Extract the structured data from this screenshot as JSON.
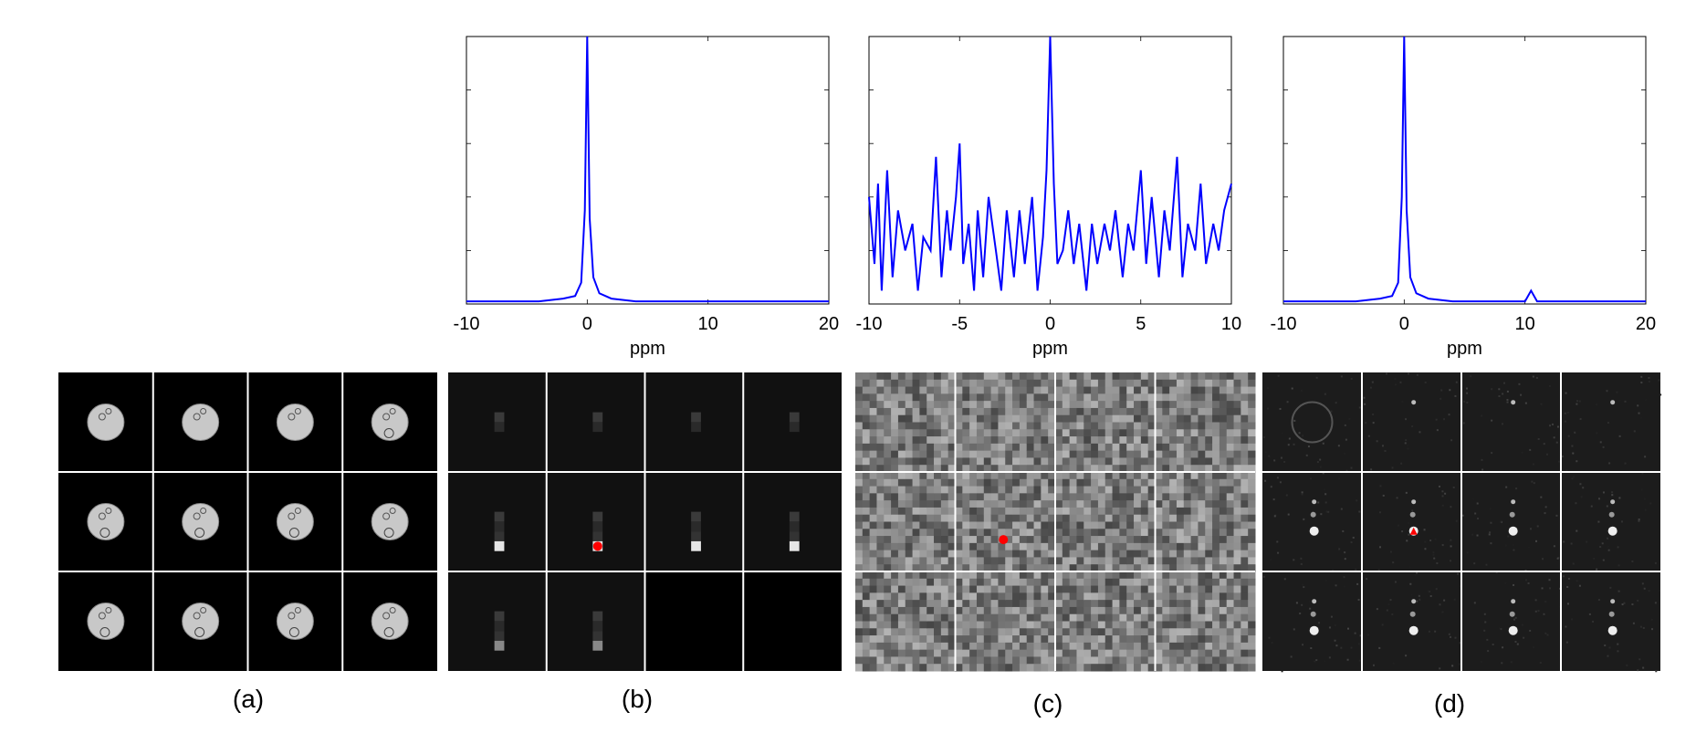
{
  "panel_labels": [
    "(a)",
    "(b)",
    "(c)",
    "(d)"
  ],
  "colors": {
    "spectrum_line": "#0000ff",
    "marker": "#ff0000",
    "grid_line": "#ffffff",
    "axis": "#000000"
  },
  "chart_data": [
    {
      "type": "line",
      "xlabel": "ppm",
      "xlim": [
        -10,
        20
      ],
      "xticks": [
        -10,
        0,
        10,
        20
      ],
      "ylim": [
        0,
        1
      ],
      "yticks": [
        0.2,
        0.4,
        0.6,
        0.8
      ],
      "series": [
        {
          "x": [
            -10,
            -8,
            -6,
            -4,
            -2,
            -1,
            -0.5,
            -0.2,
            0,
            0.2,
            0.5,
            1,
            2,
            4,
            6,
            8,
            10,
            12,
            14,
            16,
            18,
            20
          ],
          "y": [
            0.01,
            0.01,
            0.01,
            0.01,
            0.02,
            0.03,
            0.08,
            0.35,
            1.0,
            0.32,
            0.1,
            0.04,
            0.02,
            0.01,
            0.01,
            0.01,
            0.01,
            0.01,
            0.01,
            0.01,
            0.01,
            0.01
          ]
        }
      ]
    },
    {
      "type": "line",
      "xlabel": "ppm",
      "xlim": [
        -10,
        10
      ],
      "xticks": [
        -10,
        -5,
        0,
        5,
        10
      ],
      "ylim": [
        0,
        1
      ],
      "yticks": [
        0.2,
        0.4,
        0.6,
        0.8
      ],
      "series": [
        {
          "x": [
            -10,
            -9.7,
            -9.5,
            -9.3,
            -9,
            -8.7,
            -8.4,
            -8,
            -7.6,
            -7.3,
            -7,
            -6.6,
            -6.3,
            -6,
            -5.7,
            -5.5,
            -5.2,
            -5,
            -4.8,
            -4.5,
            -4.2,
            -4,
            -3.7,
            -3.4,
            -3,
            -2.7,
            -2.4,
            -2,
            -1.7,
            -1.4,
            -1,
            -0.7,
            -0.4,
            -0.2,
            0,
            0.2,
            0.4,
            0.7,
            1,
            1.3,
            1.6,
            2,
            2.3,
            2.6,
            3,
            3.3,
            3.6,
            4,
            4.3,
            4.6,
            5,
            5.3,
            5.6,
            6,
            6.3,
            6.6,
            7,
            7.3,
            7.6,
            8,
            8.3,
            8.6,
            9,
            9.3,
            9.6,
            10
          ],
          "y": [
            0.4,
            0.15,
            0.45,
            0.05,
            0.5,
            0.1,
            0.35,
            0.2,
            0.3,
            0.05,
            0.25,
            0.2,
            0.55,
            0.1,
            0.35,
            0.2,
            0.4,
            0.6,
            0.15,
            0.3,
            0.05,
            0.35,
            0.1,
            0.4,
            0.2,
            0.05,
            0.35,
            0.1,
            0.35,
            0.15,
            0.4,
            0.05,
            0.25,
            0.5,
            1.0,
            0.45,
            0.15,
            0.2,
            0.35,
            0.15,
            0.3,
            0.05,
            0.3,
            0.15,
            0.3,
            0.2,
            0.35,
            0.1,
            0.3,
            0.2,
            0.5,
            0.15,
            0.4,
            0.1,
            0.35,
            0.2,
            0.55,
            0.1,
            0.3,
            0.2,
            0.45,
            0.15,
            0.3,
            0.2,
            0.35,
            0.45
          ]
        }
      ]
    },
    {
      "type": "line",
      "xlabel": "ppm",
      "xlim": [
        -10,
        20
      ],
      "xticks": [
        -10,
        0,
        10,
        20
      ],
      "ylim": [
        0,
        1
      ],
      "yticks": [
        0.2,
        0.4,
        0.6,
        0.8
      ],
      "series": [
        {
          "x": [
            -10,
            -8,
            -6,
            -4,
            -2,
            -1,
            -0.5,
            -0.2,
            0,
            0.2,
            0.5,
            1,
            2,
            4,
            6,
            8,
            10,
            10.5,
            11,
            12,
            14,
            16,
            18,
            20
          ],
          "y": [
            0.01,
            0.01,
            0.01,
            0.01,
            0.02,
            0.03,
            0.08,
            0.4,
            1.0,
            0.35,
            0.1,
            0.04,
            0.02,
            0.01,
            0.01,
            0.01,
            0.01,
            0.05,
            0.01,
            0.01,
            0.01,
            0.01,
            0.01,
            0.01
          ]
        }
      ]
    }
  ]
}
